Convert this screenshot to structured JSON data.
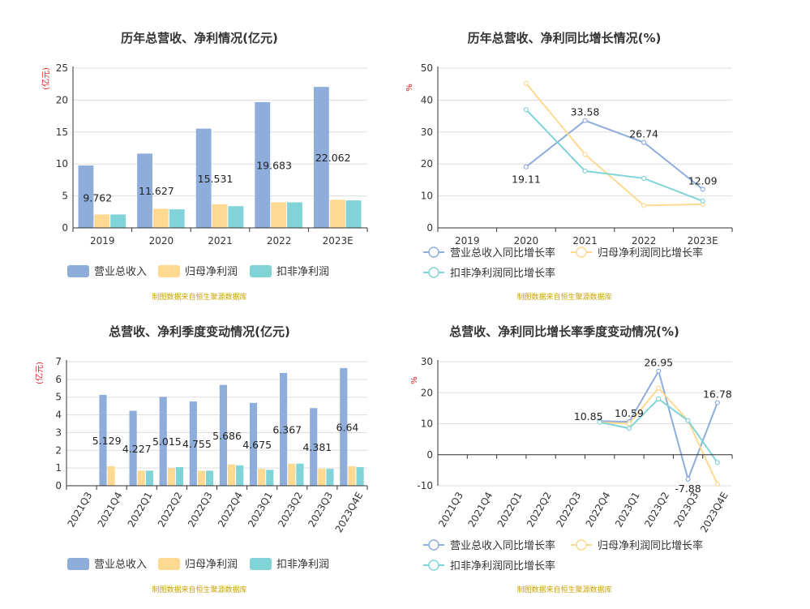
{
  "colors": {
    "revenue": "#8eaddb",
    "parent_profit": "#fdd992",
    "deducted_profit": "#80d4d8"
  },
  "legend_bar": [
    "营业总收入",
    "归母净利润",
    "扣非净利润"
  ],
  "legend_line": [
    "营业总收入同比增长率",
    "归母净利润同比增长率",
    "扣非净利润同比增长率"
  ],
  "source": "制图数据来自恒生聚源数据库",
  "chart_data": [
    {
      "type": "bar",
      "title": "历年总营收、净利情况(亿元)",
      "ylabel": "(亿元)",
      "ylim": [
        0,
        25
      ],
      "yticks": [
        0,
        5,
        10,
        15,
        20,
        25
      ],
      "categories": [
        "2019",
        "2020",
        "2021",
        "2022",
        "2023E"
      ],
      "series": [
        {
          "name": "营业总收入",
          "values": [
            9.762,
            11.627,
            15.531,
            19.683,
            22.062
          ]
        },
        {
          "name": "归母净利润",
          "values": [
            2.1,
            3.0,
            3.7,
            4.0,
            4.4
          ]
        },
        {
          "name": "扣非净利润",
          "values": [
            2.1,
            2.9,
            3.4,
            4.0,
            4.3
          ]
        }
      ],
      "data_labels": [
        "9.762",
        "11.627",
        "15.531",
        "19.683",
        "22.062"
      ]
    },
    {
      "type": "line",
      "title": "历年总营收、净利同比增长情况(%)",
      "ylabel": "%",
      "ylim": [
        0,
        50
      ],
      "yticks": [
        0,
        10,
        20,
        30,
        40,
        50
      ],
      "categories": [
        "2019",
        "2020",
        "2021",
        "2022",
        "2023E"
      ],
      "series": [
        {
          "name": "营业总收入同比增长率",
          "values": [
            null,
            19.11,
            33.58,
            26.74,
            12.09
          ]
        },
        {
          "name": "归母净利润同比增长率",
          "values": [
            null,
            45.2,
            23.0,
            7.0,
            7.4
          ]
        },
        {
          "name": "扣非净利润同比增长率",
          "values": [
            null,
            37.0,
            17.8,
            15.5,
            8.4
          ]
        }
      ],
      "data_labels": [
        "",
        "19.11",
        "33.58",
        "26.74",
        "12.09"
      ]
    },
    {
      "type": "bar",
      "title": "总营收、净利季度变动情况(亿元)",
      "ylabel": "(亿元)",
      "ylim": [
        0,
        7
      ],
      "yticks": [
        0,
        1,
        2,
        3,
        4,
        5,
        6,
        7
      ],
      "categories": [
        "2021Q3",
        "2021Q4",
        "2022Q1",
        "2022Q2",
        "2022Q3",
        "2022Q4",
        "2023Q1",
        "2023Q2",
        "2023Q3",
        "2023Q4E"
      ],
      "series": [
        {
          "name": "营业总收入",
          "values": [
            null,
            5.129,
            4.227,
            5.015,
            4.755,
            5.686,
            4.675,
            6.367,
            4.381,
            6.64
          ]
        },
        {
          "name": "归母净利润",
          "values": [
            null,
            1.1,
            0.85,
            1.0,
            0.85,
            1.2,
            0.95,
            1.25,
            0.95,
            1.1
          ]
        },
        {
          "name": "扣非净利润",
          "values": [
            null,
            null,
            0.85,
            1.05,
            0.85,
            1.15,
            0.9,
            1.25,
            0.95,
            1.05
          ]
        }
      ],
      "data_labels": [
        "",
        "5.129",
        "4.227",
        "5.015",
        "4.755",
        "5.686",
        "4.675",
        "6.367",
        "4.381",
        "6.64"
      ]
    },
    {
      "type": "line",
      "title": "总营收、净利同比增长率季度变动情况(%)",
      "ylabel": "%",
      "ylim": [
        -10,
        30
      ],
      "yticks": [
        -10,
        0,
        10,
        20,
        30
      ],
      "categories": [
        "2021Q3",
        "2021Q4",
        "2022Q1",
        "2022Q2",
        "2022Q3",
        "2022Q4",
        "2023Q1",
        "2023Q2",
        "2023Q3",
        "2023Q4E"
      ],
      "series": [
        {
          "name": "营业总收入同比增长率",
          "values": [
            null,
            null,
            null,
            null,
            null,
            10.85,
            10.59,
            26.95,
            -7.88,
            16.78
          ]
        },
        {
          "name": "归母净利润同比增长率",
          "values": [
            null,
            null,
            null,
            null,
            null,
            10.5,
            10.0,
            21.5,
            11.0,
            -9.5
          ]
        },
        {
          "name": "扣非净利润同比增长率",
          "values": [
            null,
            null,
            null,
            null,
            null,
            10.5,
            8.5,
            18.0,
            11.0,
            -2.5
          ]
        }
      ],
      "data_labels": [
        "",
        "",
        "",
        "",
        "",
        "10.85",
        "10.59",
        "26.95",
        "-7.88",
        "16.78"
      ]
    }
  ]
}
